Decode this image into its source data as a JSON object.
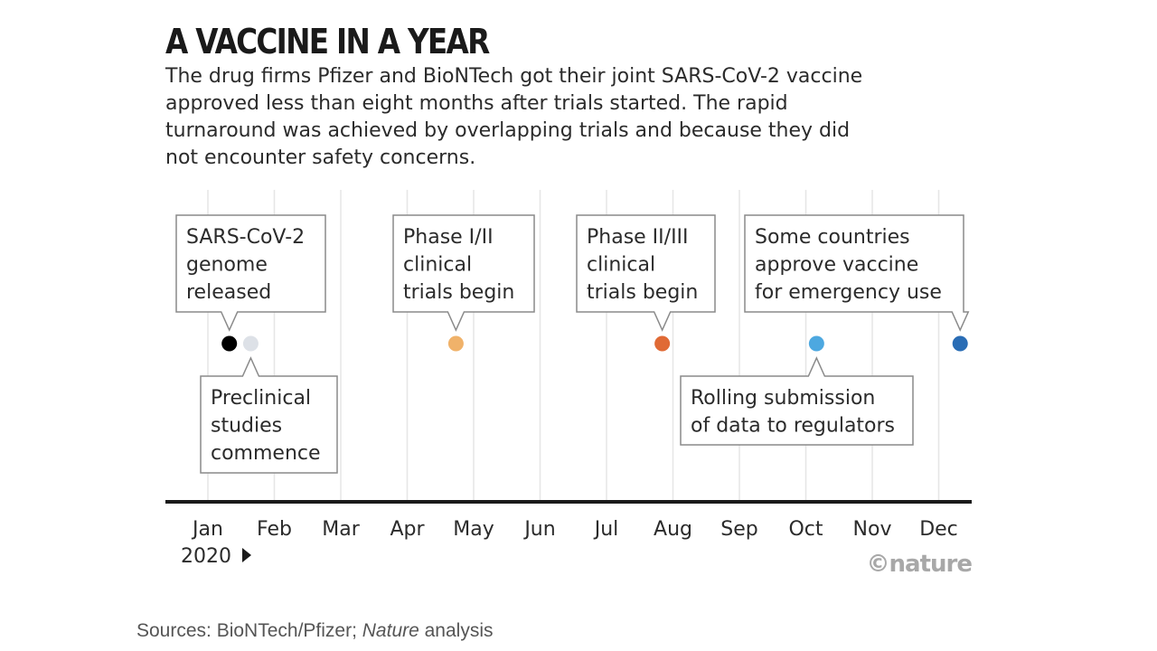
{
  "header": {
    "title": "A VACCINE IN A YEAR",
    "subtitle": "The drug firms Pfizer and BioNTech got their joint SARS-CoV-2 vaccine approved less than eight months after trials started. The rapid turnaround was achieved by overlapping trials and because they did not encounter safety concerns."
  },
  "chart_data": {
    "type": "scatter",
    "x_axis": {
      "tick_labels": [
        "Jan",
        "Feb",
        "Mar",
        "Apr",
        "May",
        "Jun",
        "Jul",
        "Aug",
        "Sep",
        "Oct",
        "Nov",
        "Dec"
      ],
      "year_label": "2020",
      "range": [
        "2020-01-01",
        "2020-12-31"
      ]
    },
    "grid": true,
    "events": [
      {
        "date": "2020-01-11",
        "label": [
          "SARS-CoV-2",
          "genome",
          "released"
        ],
        "color": "#000000",
        "callout": "above"
      },
      {
        "date": "2020-01-21",
        "label": [
          "Preclinical",
          "studies",
          "commence"
        ],
        "color": "#dde1e7",
        "callout": "below"
      },
      {
        "date": "2020-04-23",
        "label": [
          "Phase I/II",
          "clinical",
          "trials begin"
        ],
        "color": "#f0b26a",
        "callout": "above"
      },
      {
        "date": "2020-07-27",
        "label": [
          "Phase II/III",
          "clinical",
          "trials begin"
        ],
        "color": "#e06a35",
        "callout": "above"
      },
      {
        "date": "2020-10-06",
        "label": [
          "Rolling submission",
          "of data to regulators"
        ],
        "color": "#4da8e0",
        "callout": "below"
      },
      {
        "date": "2020-12-11",
        "label": [
          "Some countries",
          "approve vaccine",
          "for emergency use"
        ],
        "color": "#2a6db5",
        "callout": "above"
      }
    ]
  },
  "credit": "©nature",
  "footer": {
    "sources_prefix": "Sources: BioNTech/Pfizer; ",
    "sources_italic": "Nature",
    "sources_suffix": " analysis"
  }
}
